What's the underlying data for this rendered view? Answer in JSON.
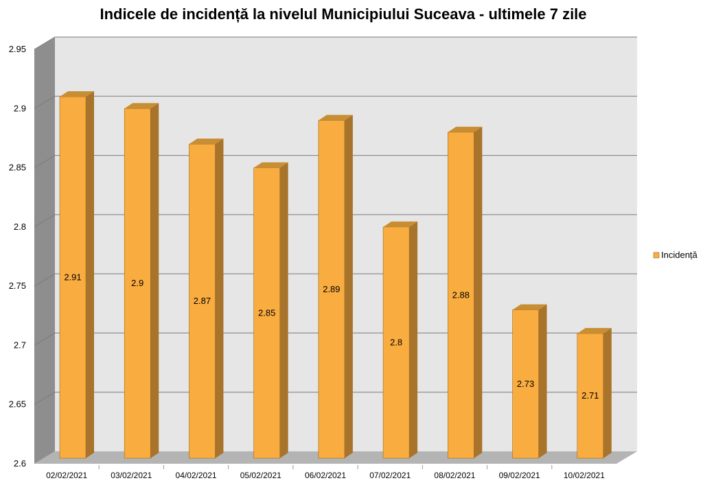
{
  "chart_data": {
    "type": "bar",
    "title": "Indicele de incidență la nivelul Municipiului Suceava - ultimele 7 zile",
    "xlabel": "",
    "ylabel": "",
    "categories": [
      "02/02/2021",
      "03/02/2021",
      "04/02/2021",
      "05/02/2021",
      "06/02/2021",
      "07/02/2021",
      "08/02/2021",
      "09/02/2021",
      "10/02/2021"
    ],
    "series": [
      {
        "name": "Incidență",
        "values": [
          2.91,
          2.9,
          2.87,
          2.85,
          2.89,
          2.8,
          2.88,
          2.73,
          2.71
        ]
      }
    ],
    "ylim": [
      2.6,
      2.95
    ],
    "yticks": [
      "2.6",
      "2.65",
      "2.7",
      "2.75",
      "2.8",
      "2.85",
      "2.9",
      "2.95"
    ],
    "grid": true,
    "legend_position": "right",
    "style": "3d",
    "colors": {
      "bar_front": "#F9AC40",
      "bar_side": "#A8732A",
      "bar_top": "#C88E33",
      "back_wall": "#E6E6E6",
      "side_wall": "#8E8E8E",
      "floor": "#B4B4B4",
      "grid": "#7A7A7A"
    }
  }
}
